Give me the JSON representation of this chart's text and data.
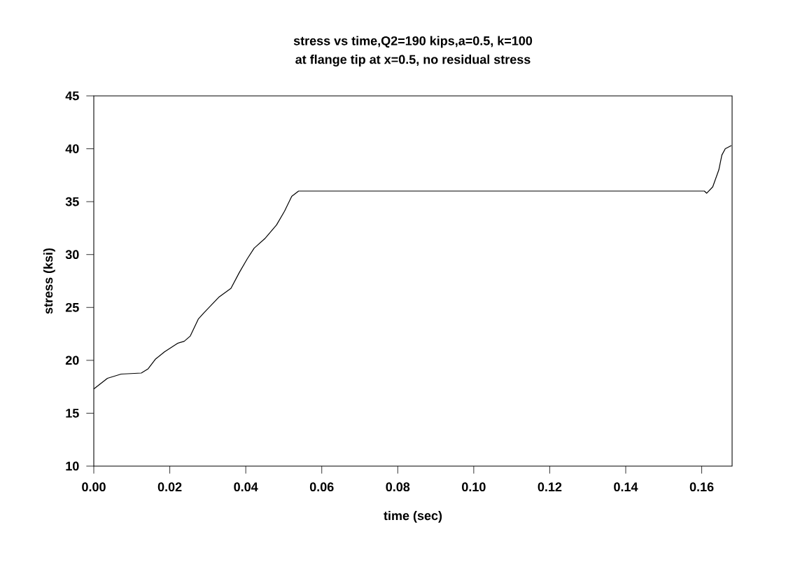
{
  "chart_data": {
    "type": "line",
    "title": "stress vs time,Q2=190 kips,a=0.5, k=100",
    "subtitle": "at flange tip at x=0.5, no residual stress",
    "xlabel": "time (sec)",
    "ylabel": "stress (ksi)",
    "xlim": [
      0,
      0.168
    ],
    "ylim": [
      10,
      45
    ],
    "xticks": [
      {
        "value": 0,
        "label": "0.00"
      },
      {
        "value": 0.02,
        "label": "0.02"
      },
      {
        "value": 0.04,
        "label": "0.04"
      },
      {
        "value": 0.06,
        "label": "0.06"
      },
      {
        "value": 0.08,
        "label": "0.08"
      },
      {
        "value": 0.1,
        "label": "0.10"
      },
      {
        "value": 0.12,
        "label": "0.12"
      },
      {
        "value": 0.14,
        "label": "0.14"
      },
      {
        "value": 0.16,
        "label": "0.16"
      }
    ],
    "yticks": [
      10,
      15,
      20,
      25,
      30,
      35,
      40,
      45
    ],
    "grid": false,
    "legend": false,
    "marker": "none",
    "line_style": "solid",
    "series": [
      {
        "color": "#000000",
        "x": [
          0,
          0.0036,
          0.0072,
          0.0125,
          0.0143,
          0.0162,
          0.0186,
          0.022,
          0.0238,
          0.0254,
          0.0275,
          0.029,
          0.033,
          0.0361,
          0.0383,
          0.0404,
          0.0422,
          0.045,
          0.0481,
          0.0502,
          0.0521,
          0.0539,
          0.1607,
          0.1613,
          0.1629,
          0.1645,
          0.1653,
          0.1662,
          0.1678
        ],
        "values": [
          17.3,
          18.3,
          18.7,
          18.8,
          19.2,
          20.1,
          20.8,
          21.6,
          21.8,
          22.3,
          23.9,
          24.5,
          26.0,
          26.8,
          28.3,
          29.6,
          30.6,
          31.5,
          32.8,
          34.1,
          35.5,
          36.0,
          36.0,
          35.8,
          36.4,
          38.0,
          39.4,
          40.0,
          40.3
        ]
      }
    ]
  }
}
